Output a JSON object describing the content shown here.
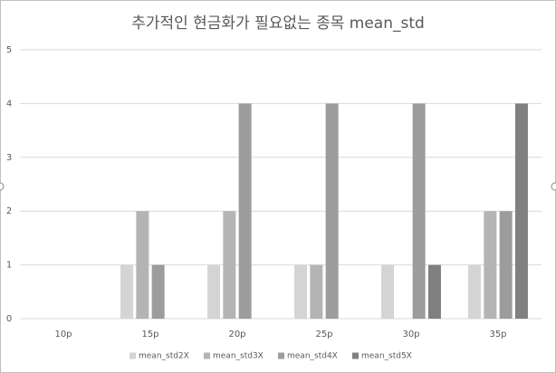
{
  "chart_data": {
    "type": "bar",
    "title": "추가적인 현금화가 필요없는 종목 mean_std",
    "categories": [
      "10p",
      "15p",
      "20p",
      "25p",
      "30p",
      "35p"
    ],
    "series": [
      {
        "name": "mean_std2X",
        "color": "#d4d4d4",
        "values": [
          0,
          1,
          1,
          1,
          1,
          1
        ]
      },
      {
        "name": "mean_std3X",
        "color": "#b4b4b4",
        "values": [
          0,
          2,
          2,
          1,
          0,
          2
        ]
      },
      {
        "name": "mean_std4X",
        "color": "#9c9c9c",
        "values": [
          0,
          1,
          4,
          4,
          4,
          2
        ]
      },
      {
        "name": "mean_std5X",
        "color": "#808080",
        "values": [
          0,
          0,
          0,
          0,
          1,
          4
        ]
      }
    ],
    "ylim": [
      0,
      5
    ],
    "yticks": [
      0,
      1,
      2,
      3,
      4,
      5
    ],
    "grid": true,
    "legend": "bottom"
  }
}
